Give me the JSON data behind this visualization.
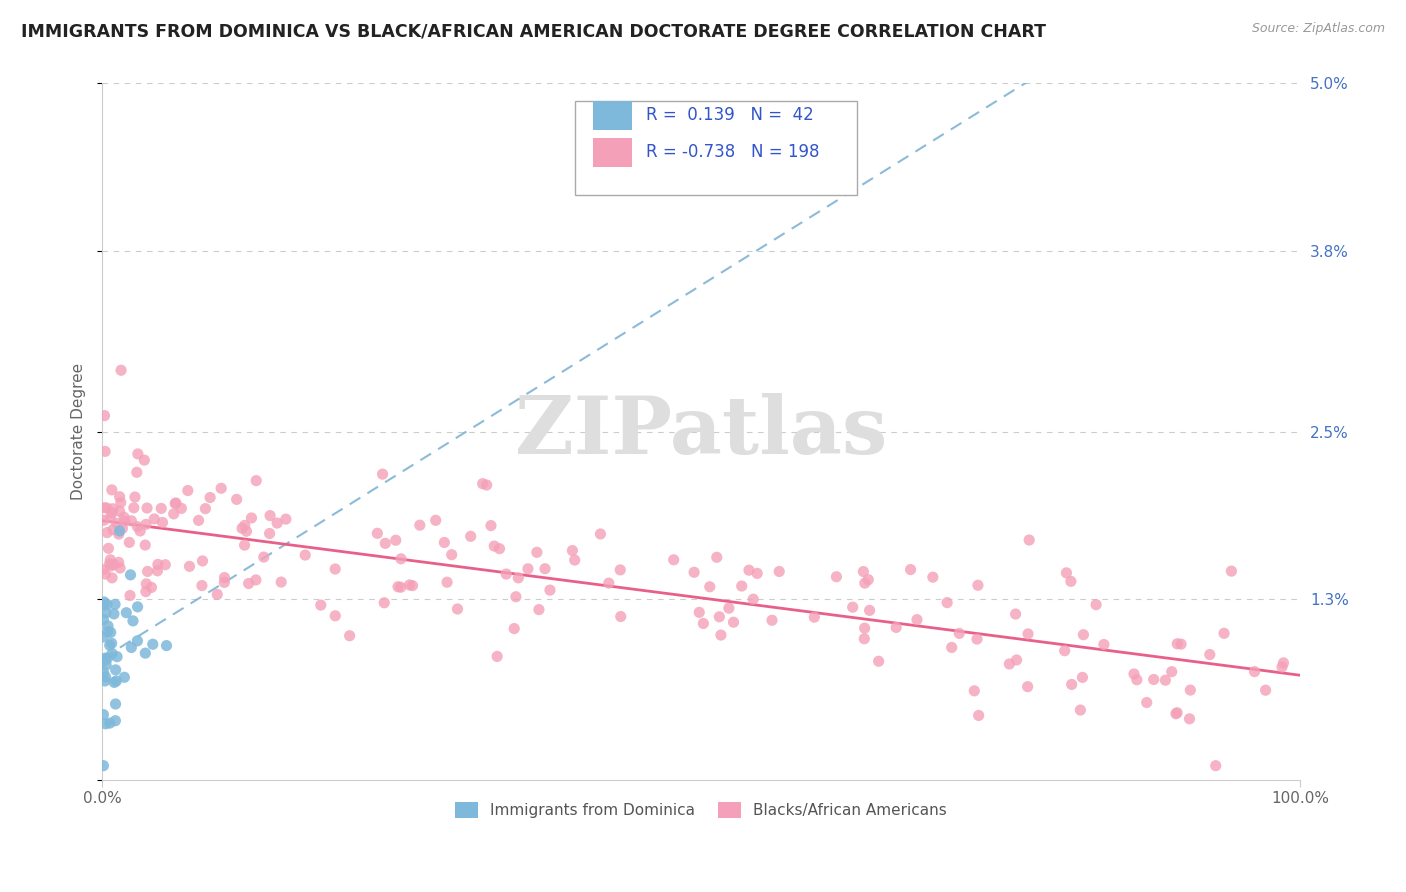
{
  "title": "IMMIGRANTS FROM DOMINICA VS BLACK/AFRICAN AMERICAN DOCTORATE DEGREE CORRELATION CHART",
  "source": "Source: ZipAtlas.com",
  "ylabel": "Doctorate Degree",
  "ytick_values": [
    0.0,
    0.013,
    0.025,
    0.038,
    0.05
  ],
  "ytick_labels": [
    "",
    "1.3%",
    "2.5%",
    "3.8%",
    "5.0%"
  ],
  "legend_text_line1": "R =  0.139   N =  42",
  "legend_text_line2": "R = -0.738   N = 198",
  "legend_label_blue": "Immigrants from Dominica",
  "legend_label_pink": "Blacks/African Americans",
  "blue_color": "#7EB8DA",
  "pink_color": "#F4A0B8",
  "trend_blue_color": "#5B9EC9",
  "trend_pink_color": "#E8608A",
  "legend_color": "#3355CC",
  "watermark_color": "#DEDEDE",
  "grid_color": "#CCCCCC",
  "title_color": "#222222",
  "source_color": "#999999",
  "ylabel_color": "#666666",
  "tick_color": "#666666",
  "blue_n": 42,
  "pink_n": 198,
  "blue_seed": 77,
  "pink_seed": 42,
  "xlim": [
    0.0,
    1.0
  ],
  "ylim": [
    0.0,
    0.05
  ]
}
